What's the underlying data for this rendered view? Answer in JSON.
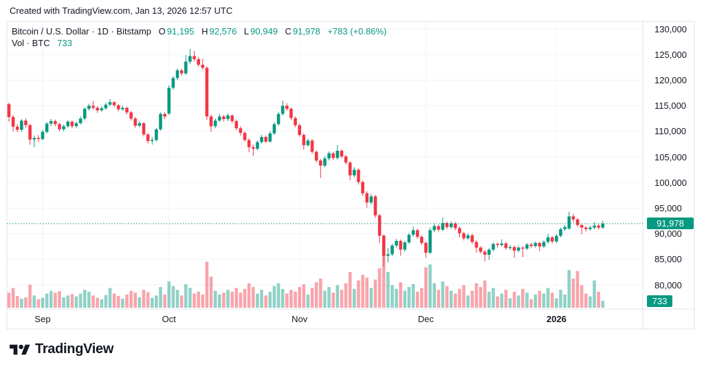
{
  "attribution": "Created with TradingView.com, Jan 13, 2026 12:57 UTC",
  "colors": {
    "up": "#089981",
    "down": "#F23645",
    "grid": "#f0f3fa",
    "frame": "#e0e3eb",
    "text": "#131722",
    "badge_bg": "#089981",
    "vol_opacity": 0.45
  },
  "legend": {
    "symbol_text": "Bitcoin / U.S. Dollar · 1D · Bitstamp",
    "labels": {
      "o": "O",
      "h": "H",
      "l": "L",
      "c": "C"
    },
    "o": "91,195",
    "h": "92,576",
    "l": "90,949",
    "c": "91,978",
    "change": "+783 (+0.86%)",
    "vol_label": "Vol · BTC",
    "vol_value": "733"
  },
  "last_price_label": "91,978",
  "last_vol_label": "733",
  "price_scale": {
    "ticks": [
      {
        "label": "130,000",
        "value": 130000
      },
      {
        "label": "125,000",
        "value": 125000
      },
      {
        "label": "120,000",
        "value": 120000
      },
      {
        "label": "115,000",
        "value": 115000
      },
      {
        "label": "110,000",
        "value": 110000
      },
      {
        "label": "105,000",
        "value": 105000
      },
      {
        "label": "100,000",
        "value": 100000
      },
      {
        "label": "95,000",
        "value": 95000
      },
      {
        "label": "90,000",
        "value": 90000
      },
      {
        "label": "85,000",
        "value": 85000
      },
      {
        "label": "80,000",
        "value": 80000
      }
    ]
  },
  "time_scale": {
    "labels": [
      {
        "label": "Sep",
        "index": 8,
        "year": false
      },
      {
        "label": "Oct",
        "index": 38,
        "year": false
      },
      {
        "label": "Nov",
        "index": 69,
        "year": false
      },
      {
        "label": "Dec",
        "index": 99,
        "year": false
      },
      {
        "label": "2026",
        "index": 130,
        "year": true
      }
    ]
  },
  "footer_logo_text": "TradingView",
  "chart_data": {
    "type": "candlestick_with_volume",
    "title": "Bitcoin / U.S. Dollar · 1D · Bitstamp",
    "unit": "USD thousands",
    "last_price": 91.978,
    "last_volume_btc": 733,
    "ylim": [
      75.5,
      131.5
    ],
    "grid": true,
    "candles": [
      [
        115.3,
        115.6,
        111.9,
        112.8
      ],
      [
        112.8,
        113.2,
        110.0,
        110.9
      ],
      [
        110.9,
        111.4,
        109.8,
        110.3
      ],
      [
        110.3,
        112.4,
        109.9,
        112.1
      ],
      [
        112.1,
        112.5,
        110.7,
        111.2
      ],
      [
        111.2,
        111.5,
        107.4,
        108.4
      ],
      [
        108.4,
        109.2,
        106.9,
        108.7
      ],
      [
        108.7,
        109.3,
        107.9,
        108.5
      ],
      [
        108.5,
        110.3,
        108.2,
        109.9
      ],
      [
        109.9,
        111.8,
        109.6,
        111.5
      ],
      [
        111.5,
        112.4,
        111.0,
        112.0
      ],
      [
        112.0,
        112.3,
        111.0,
        111.4
      ],
      [
        111.4,
        111.7,
        110.0,
        110.4
      ],
      [
        110.4,
        111.3,
        110.0,
        111.0
      ],
      [
        111.0,
        112.2,
        110.7,
        111.9
      ],
      [
        111.9,
        112.1,
        110.6,
        111.0
      ],
      [
        111.0,
        111.9,
        110.6,
        111.6
      ],
      [
        111.6,
        112.9,
        111.3,
        112.5
      ],
      [
        112.5,
        114.7,
        112.2,
        114.4
      ],
      [
        114.4,
        115.4,
        114.0,
        115.0
      ],
      [
        115.0,
        115.9,
        114.2,
        114.6
      ],
      [
        114.6,
        114.9,
        113.6,
        114.1
      ],
      [
        114.1,
        114.9,
        113.8,
        114.5
      ],
      [
        114.5,
        115.6,
        114.2,
        115.2
      ],
      [
        115.2,
        116.3,
        114.9,
        115.7
      ],
      [
        115.7,
        115.9,
        114.7,
        115.1
      ],
      [
        115.1,
        115.3,
        113.9,
        114.3
      ],
      [
        114.3,
        115.0,
        114.0,
        114.6
      ],
      [
        114.6,
        114.8,
        113.3,
        113.7
      ],
      [
        113.7,
        114.0,
        112.1,
        112.5
      ],
      [
        112.5,
        112.8,
        110.7,
        111.1
      ],
      [
        111.1,
        112.0,
        110.8,
        111.6
      ],
      [
        111.6,
        111.8,
        109.0,
        109.4
      ],
      [
        109.4,
        109.6,
        107.6,
        108.1
      ],
      [
        108.1,
        108.9,
        107.4,
        108.3
      ],
      [
        108.3,
        110.7,
        108.0,
        110.4
      ],
      [
        110.4,
        113.7,
        110.1,
        113.4
      ],
      [
        113.4,
        113.7,
        112.4,
        112.9
      ],
      [
        113.5,
        119.0,
        113.2,
        118.5
      ],
      [
        118.5,
        120.8,
        118.1,
        120.4
      ],
      [
        120.4,
        122.3,
        120.0,
        121.9
      ],
      [
        121.9,
        122.2,
        120.8,
        121.3
      ],
      [
        121.3,
        124.9,
        121.0,
        123.6
      ],
      [
        123.6,
        126.1,
        123.2,
        124.7
      ],
      [
        124.7,
        125.7,
        123.7,
        124.1
      ],
      [
        124.1,
        124.5,
        122.6,
        123.0
      ],
      [
        123.0,
        124.2,
        122.0,
        122.4
      ],
      [
        122.4,
        122.7,
        112.2,
        112.9
      ],
      [
        112.9,
        113.3,
        109.9,
        111.0
      ],
      [
        111.0,
        112.5,
        110.6,
        112.1
      ],
      [
        112.1,
        113.4,
        111.8,
        112.9
      ],
      [
        112.9,
        113.2,
        111.9,
        112.4
      ],
      [
        112.4,
        113.5,
        112.0,
        113.1
      ],
      [
        113.1,
        113.3,
        111.6,
        112.0
      ],
      [
        112.0,
        112.3,
        110.2,
        110.6
      ],
      [
        110.6,
        111.0,
        109.2,
        109.7
      ],
      [
        109.7,
        110.0,
        108.0,
        108.3
      ],
      [
        108.3,
        108.6,
        105.9,
        106.9
      ],
      [
        106.9,
        107.4,
        105.2,
        106.6
      ],
      [
        106.6,
        108.2,
        106.3,
        107.9
      ],
      [
        107.9,
        109.3,
        107.6,
        108.9
      ],
      [
        108.9,
        109.2,
        107.7,
        108.0
      ],
      [
        108.0,
        110.0,
        107.8,
        109.6
      ],
      [
        109.6,
        111.8,
        109.3,
        111.4
      ],
      [
        111.4,
        113.8,
        111.1,
        113.4
      ],
      [
        113.4,
        116.0,
        113.1,
        115.0
      ],
      [
        115.0,
        115.5,
        114.0,
        114.4
      ],
      [
        114.4,
        114.7,
        112.2,
        112.6
      ],
      [
        112.6,
        112.9,
        110.8,
        111.2
      ],
      [
        111.2,
        111.5,
        108.9,
        109.3
      ],
      [
        109.3,
        109.6,
        106.4,
        107.3
      ],
      [
        107.3,
        108.6,
        107.0,
        108.2
      ],
      [
        108.2,
        108.5,
        105.6,
        106.0
      ],
      [
        106.0,
        106.3,
        103.9,
        104.3
      ],
      [
        104.3,
        104.6,
        100.9,
        103.3
      ],
      [
        103.3,
        105.1,
        103.0,
        104.7
      ],
      [
        104.7,
        106.1,
        104.3,
        105.7
      ],
      [
        105.7,
        106.0,
        104.4,
        104.8
      ],
      [
        104.8,
        107.3,
        104.5,
        106.2
      ],
      [
        106.2,
        106.5,
        104.7,
        105.1
      ],
      [
        105.1,
        105.4,
        103.5,
        103.9
      ],
      [
        103.9,
        104.2,
        100.4,
        101.4
      ],
      [
        101.4,
        103.0,
        101.0,
        102.5
      ],
      [
        102.5,
        102.8,
        99.6,
        100.1
      ],
      [
        100.1,
        100.4,
        97.4,
        97.9
      ],
      [
        97.9,
        98.3,
        95.1,
        96.1
      ],
      [
        96.1,
        97.8,
        95.7,
        97.3
      ],
      [
        97.3,
        97.6,
        93.1,
        93.6
      ],
      [
        93.6,
        93.9,
        88.2,
        89.6
      ],
      [
        89.6,
        89.9,
        83.6,
        85.7
      ],
      [
        85.7,
        87.2,
        84.4,
        86.0
      ],
      [
        86.0,
        88.0,
        85.6,
        87.7
      ],
      [
        87.7,
        89.0,
        87.3,
        88.6
      ],
      [
        88.6,
        88.9,
        85.7,
        86.9
      ],
      [
        86.9,
        88.6,
        86.5,
        88.3
      ],
      [
        88.3,
        90.2,
        88.0,
        89.8
      ],
      [
        89.8,
        91.4,
        89.4,
        90.7
      ],
      [
        90.7,
        91.0,
        89.0,
        89.4
      ],
      [
        89.4,
        89.7,
        87.8,
        88.2
      ],
      [
        88.2,
        88.5,
        85.3,
        86.3
      ],
      [
        86.3,
        91.2,
        86.0,
        90.7
      ],
      [
        90.7,
        92.0,
        90.3,
        91.5
      ],
      [
        91.5,
        91.8,
        90.4,
        90.8
      ],
      [
        90.8,
        93.2,
        90.5,
        92.1
      ],
      [
        92.1,
        92.4,
        90.9,
        91.3
      ],
      [
        91.3,
        92.4,
        91.0,
        92.0
      ],
      [
        92.0,
        92.3,
        90.7,
        91.1
      ],
      [
        91.1,
        91.4,
        89.3,
        90.1
      ],
      [
        90.1,
        90.4,
        88.7,
        89.1
      ],
      [
        89.1,
        90.1,
        88.8,
        89.7
      ],
      [
        89.7,
        90.0,
        88.0,
        88.4
      ],
      [
        88.4,
        88.7,
        86.3,
        87.3
      ],
      [
        87.3,
        87.6,
        86.1,
        86.5
      ],
      [
        86.5,
        86.8,
        84.6,
        85.9
      ],
      [
        85.9,
        87.2,
        84.9,
        86.9
      ],
      [
        86.9,
        88.3,
        86.6,
        88.0
      ],
      [
        88.0,
        88.3,
        87.3,
        87.8
      ],
      [
        87.8,
        88.9,
        87.5,
        88.1
      ],
      [
        88.1,
        88.4,
        86.9,
        87.2
      ],
      [
        87.2,
        87.8,
        86.8,
        87.4
      ],
      [
        87.4,
        87.7,
        85.3,
        86.7
      ],
      [
        86.7,
        87.6,
        86.4,
        87.3
      ],
      [
        87.3,
        87.6,
        85.4,
        87.1
      ],
      [
        87.1,
        88.2,
        86.8,
        87.9
      ],
      [
        87.9,
        88.2,
        87.2,
        87.6
      ],
      [
        87.6,
        88.5,
        87.3,
        88.2
      ],
      [
        88.2,
        88.4,
        86.6,
        87.5
      ],
      [
        87.5,
        88.7,
        87.2,
        88.4
      ],
      [
        88.4,
        90.0,
        88.1,
        89.3
      ],
      [
        89.3,
        89.6,
        88.1,
        88.5
      ],
      [
        88.5,
        89.9,
        88.2,
        89.6
      ],
      [
        89.6,
        91.2,
        89.3,
        90.9
      ],
      [
        90.9,
        91.7,
        90.6,
        91.3
      ],
      [
        91.0,
        94.3,
        90.8,
        93.4
      ],
      [
        93.4,
        93.9,
        92.2,
        92.8
      ],
      [
        92.8,
        93.1,
        91.3,
        91.7
      ],
      [
        91.7,
        92.0,
        89.9,
        91.2
      ],
      [
        91.2,
        91.5,
        90.4,
        90.9
      ],
      [
        90.9,
        91.6,
        90.6,
        91.2
      ],
      [
        91.2,
        92.3,
        90.9,
        91.6
      ],
      [
        91.6,
        91.9,
        90.8,
        91.195
      ],
      [
        91.195,
        92.576,
        90.949,
        91.978
      ]
    ],
    "volumes": [
      1600,
      2100,
      1250,
      950,
      1100,
      2450,
      1300,
      900,
      1050,
      1500,
      1800,
      1600,
      1750,
      1100,
      1300,
      1450,
      1200,
      1500,
      1900,
      1700,
      1300,
      1050,
      900,
      1350,
      2100,
      1500,
      1250,
      950,
      1400,
      1800,
      1600,
      1100,
      1900,
      1650,
      1050,
      1300,
      2200,
      1400,
      2800,
      2300,
      1900,
      1300,
      2500,
      2100,
      1500,
      1700,
      1400,
      4900,
      3300,
      1800,
      1400,
      1600,
      1900,
      1700,
      2100,
      1600,
      2000,
      2600,
      2200,
      1500,
      1900,
      1300,
      1700,
      2300,
      2600,
      2000,
      1500,
      1900,
      1700,
      2200,
      2500,
      1400,
      2100,
      2700,
      3100,
      1800,
      2200,
      1600,
      2400,
      1900,
      2600,
      3800,
      2000,
      2900,
      3500,
      3200,
      2100,
      3000,
      4200,
      7700,
      3800,
      2400,
      2000,
      2700,
      1800,
      2200,
      2500,
      1700,
      2100,
      4300,
      4600,
      2600,
      1900,
      2800,
      2300,
      1800,
      1500,
      2000,
      2400,
      1300,
      1800,
      2600,
      2200,
      2900,
      1700,
      2100,
      1200,
      1500,
      1900,
      1000,
      1700,
      1300,
      2000,
      1600,
      900,
      1400,
      1800,
      1500,
      2100,
      1600,
      1000,
      1900,
      1400,
      4000,
      3100,
      3900,
      2400,
      1500,
      1200,
      2900,
      1700,
      733
    ]
  }
}
